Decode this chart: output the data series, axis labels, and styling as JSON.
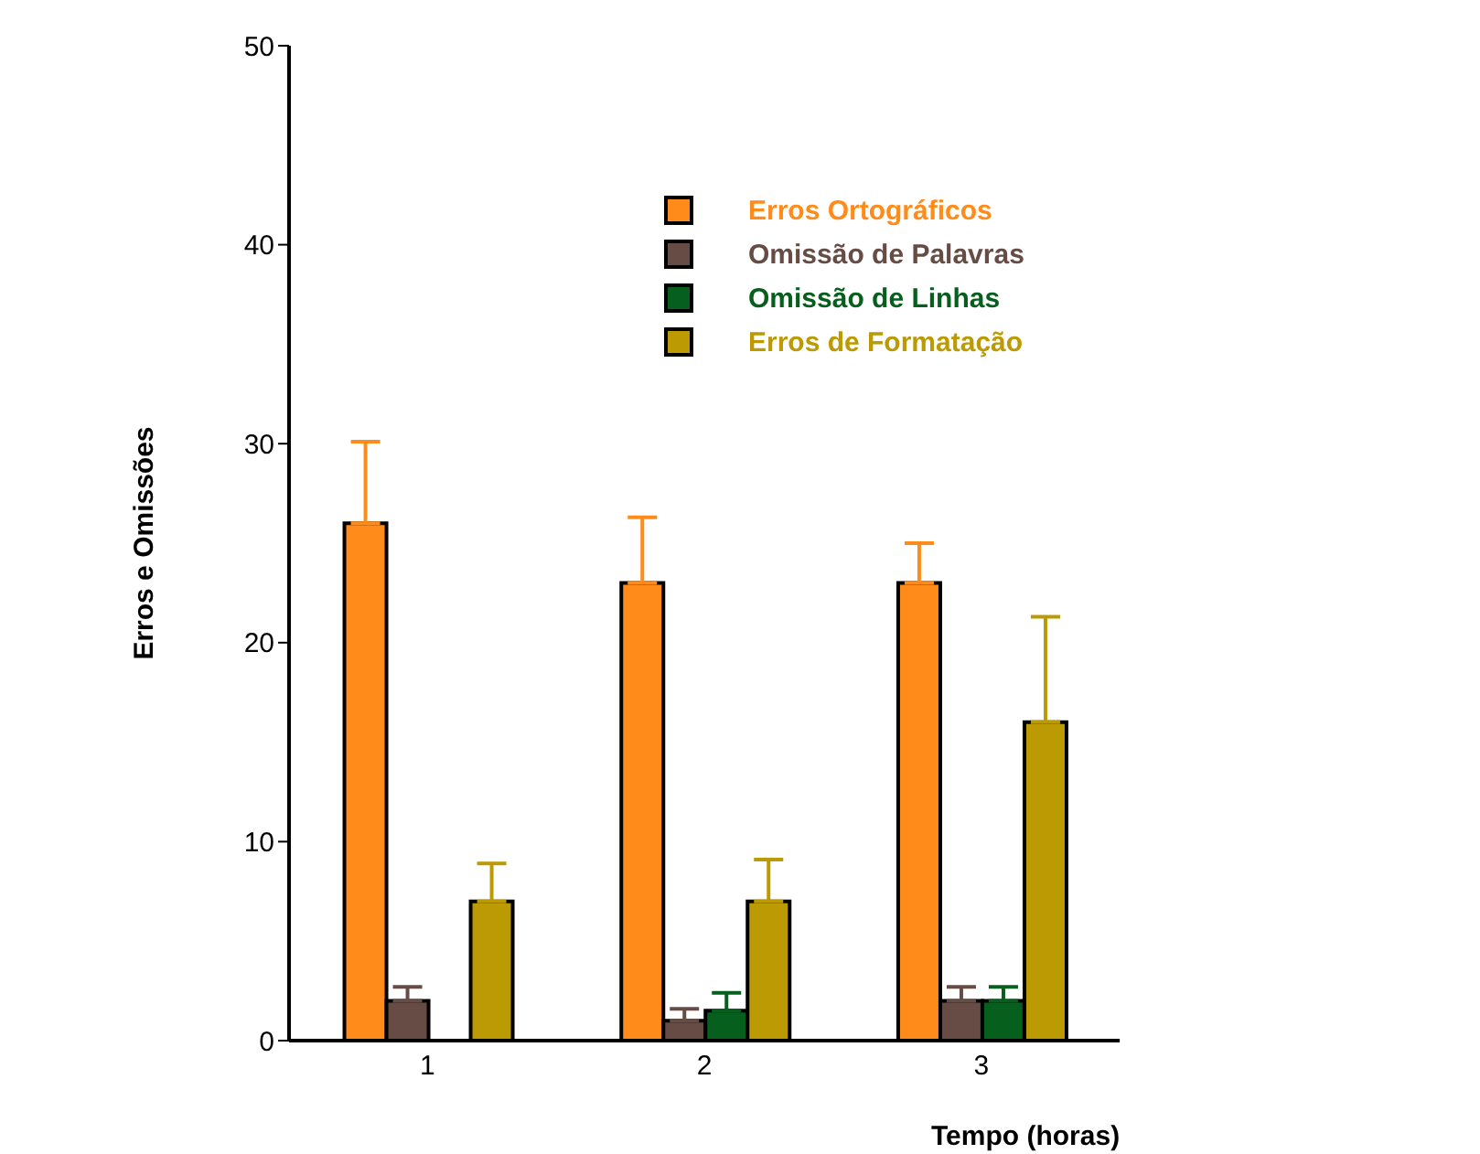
{
  "chart_data": {
    "type": "bar",
    "xlabel": "Tempo (horas)",
    "ylabel": "Erros e Omissões",
    "categories": [
      "1",
      "2",
      "3"
    ],
    "ylim": [
      0,
      50
    ],
    "yticks": [
      0,
      10,
      20,
      30,
      40,
      50
    ],
    "grid": false,
    "legend": "top right",
    "series": [
      {
        "name": "Erros Ortográficos",
        "color": "#ff8c1a",
        "values": [
          26,
          23,
          23
        ],
        "errors": [
          [
            26,
            30.1
          ],
          [
            23,
            26.3
          ],
          [
            23,
            25
          ]
        ]
      },
      {
        "name": "Omissão de Palavras",
        "color": "#664c45",
        "values": [
          2,
          1,
          2
        ],
        "errors": [
          [
            2,
            2.7
          ],
          [
            1,
            1.6
          ],
          [
            2,
            2.7
          ]
        ]
      },
      {
        "name": "Omissão de Linhas",
        "color": "#065f1c",
        "values": [
          0,
          1.5,
          2
        ],
        "errors": [
          null,
          [
            1.5,
            2.4
          ],
          [
            2,
            2.7
          ]
        ]
      },
      {
        "name": "Erros de Formatação",
        "color": "#bb9a04",
        "values": [
          7,
          7,
          16
        ],
        "errors": [
          [
            7,
            8.9
          ],
          [
            7,
            9.1
          ],
          [
            16,
            21.3
          ]
        ]
      }
    ]
  }
}
